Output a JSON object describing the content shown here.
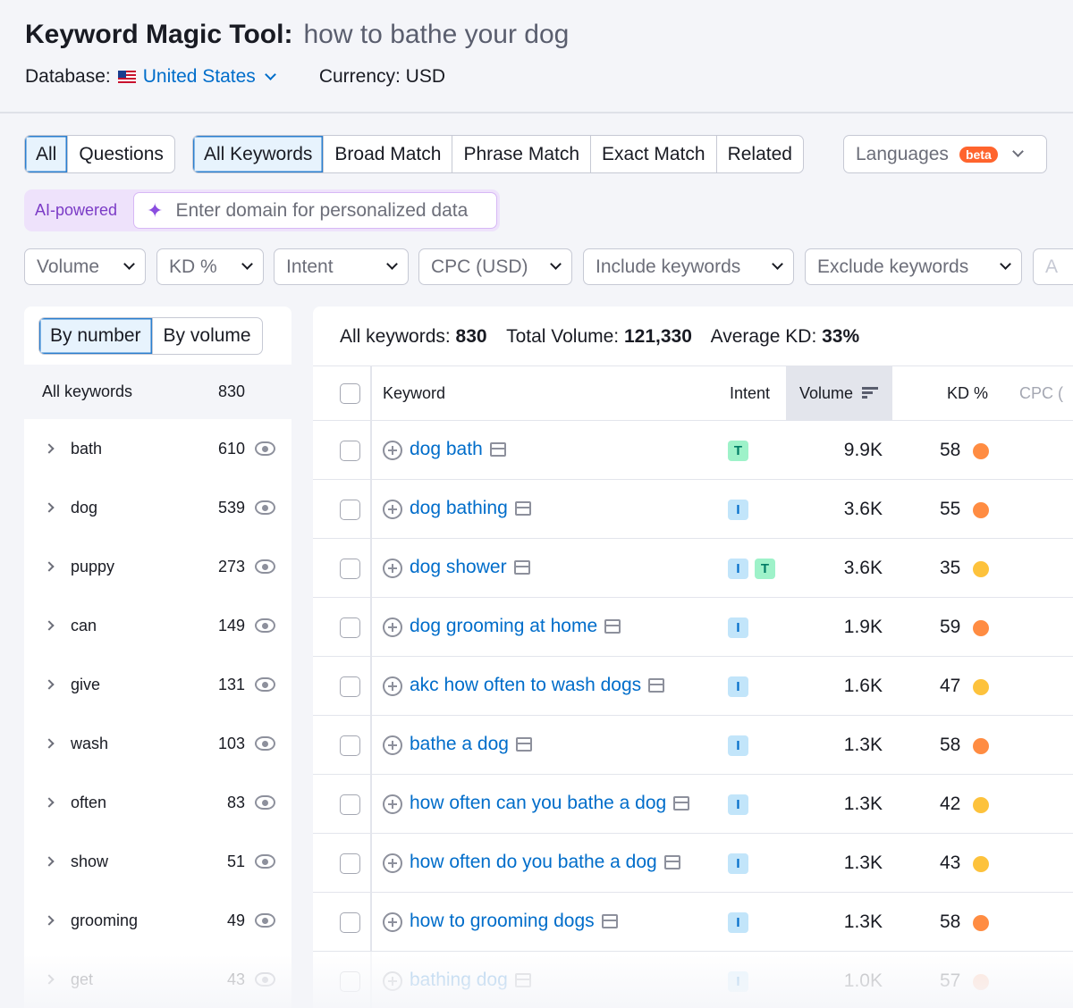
{
  "header": {
    "title": "Keyword Magic Tool:",
    "query": "how to bathe your dog",
    "database_label": "Database:",
    "database_value": "United States",
    "currency": "Currency: USD"
  },
  "tabs_match_type": [
    "All",
    "Questions"
  ],
  "tabs_keywords": [
    "All Keywords",
    "Broad Match",
    "Phrase Match",
    "Exact Match",
    "Related"
  ],
  "languages": {
    "label": "Languages",
    "badge": "beta"
  },
  "ai": {
    "label": "AI-powered",
    "placeholder": "Enter domain for personalized data"
  },
  "filters": [
    "Volume",
    "KD %",
    "Intent",
    "CPC (USD)",
    "Include keywords",
    "Exclude keywords",
    "A"
  ],
  "left_panel": {
    "tabs": [
      "By number",
      "By volume"
    ],
    "all_label": "All keywords",
    "all_count": "830",
    "groups": [
      {
        "word": "bath",
        "count": "610"
      },
      {
        "word": "dog",
        "count": "539"
      },
      {
        "word": "puppy",
        "count": "273"
      },
      {
        "word": "can",
        "count": "149"
      },
      {
        "word": "give",
        "count": "131"
      },
      {
        "word": "wash",
        "count": "103"
      },
      {
        "word": "often",
        "count": "83"
      },
      {
        "word": "show",
        "count": "51"
      },
      {
        "word": "grooming",
        "count": "49"
      },
      {
        "word": "get",
        "count": "43"
      }
    ]
  },
  "summary": {
    "all_label": "All keywords:",
    "all_value": "830",
    "volume_label": "Total Volume:",
    "volume_value": "121,330",
    "kd_label": "Average KD:",
    "kd_value": "33%"
  },
  "table": {
    "columns": {
      "keyword": "Keyword",
      "intent": "Intent",
      "volume": "Volume",
      "kd": "KD %",
      "cpc": "CPC ("
    },
    "colors": {
      "orange": "#ff8c42",
      "yellow": "#fdc23c"
    },
    "rows": [
      {
        "keyword": "dog bath",
        "intent": [
          "T"
        ],
        "volume": "9.9K",
        "kd": "58",
        "kd_color": "#ff8c42"
      },
      {
        "keyword": "dog bathing",
        "intent": [
          "I"
        ],
        "volume": "3.6K",
        "kd": "55",
        "kd_color": "#ff8c42"
      },
      {
        "keyword": "dog shower",
        "intent": [
          "I",
          "T"
        ],
        "volume": "3.6K",
        "kd": "35",
        "kd_color": "#fdc23c"
      },
      {
        "keyword": "dog grooming at home",
        "intent": [
          "I"
        ],
        "volume": "1.9K",
        "kd": "59",
        "kd_color": "#ff8c42"
      },
      {
        "keyword": "akc how often to wash dogs",
        "intent": [
          "I"
        ],
        "volume": "1.6K",
        "kd": "47",
        "kd_color": "#fdc23c"
      },
      {
        "keyword": "bathe a dog",
        "intent": [
          "I"
        ],
        "volume": "1.3K",
        "kd": "58",
        "kd_color": "#ff8c42"
      },
      {
        "keyword": "how often can you bathe a dog",
        "intent": [
          "I"
        ],
        "volume": "1.3K",
        "kd": "42",
        "kd_color": "#fdc23c"
      },
      {
        "keyword": "how often do you bathe a dog",
        "intent": [
          "I"
        ],
        "volume": "1.3K",
        "kd": "43",
        "kd_color": "#fdc23c"
      },
      {
        "keyword": "how to grooming dogs",
        "intent": [
          "I"
        ],
        "volume": "1.3K",
        "kd": "58",
        "kd_color": "#ff8c42"
      },
      {
        "keyword": "bathing dog",
        "intent": [
          "I"
        ],
        "volume": "1.0K",
        "kd": "57",
        "kd_color": "#ffb08a"
      }
    ]
  }
}
